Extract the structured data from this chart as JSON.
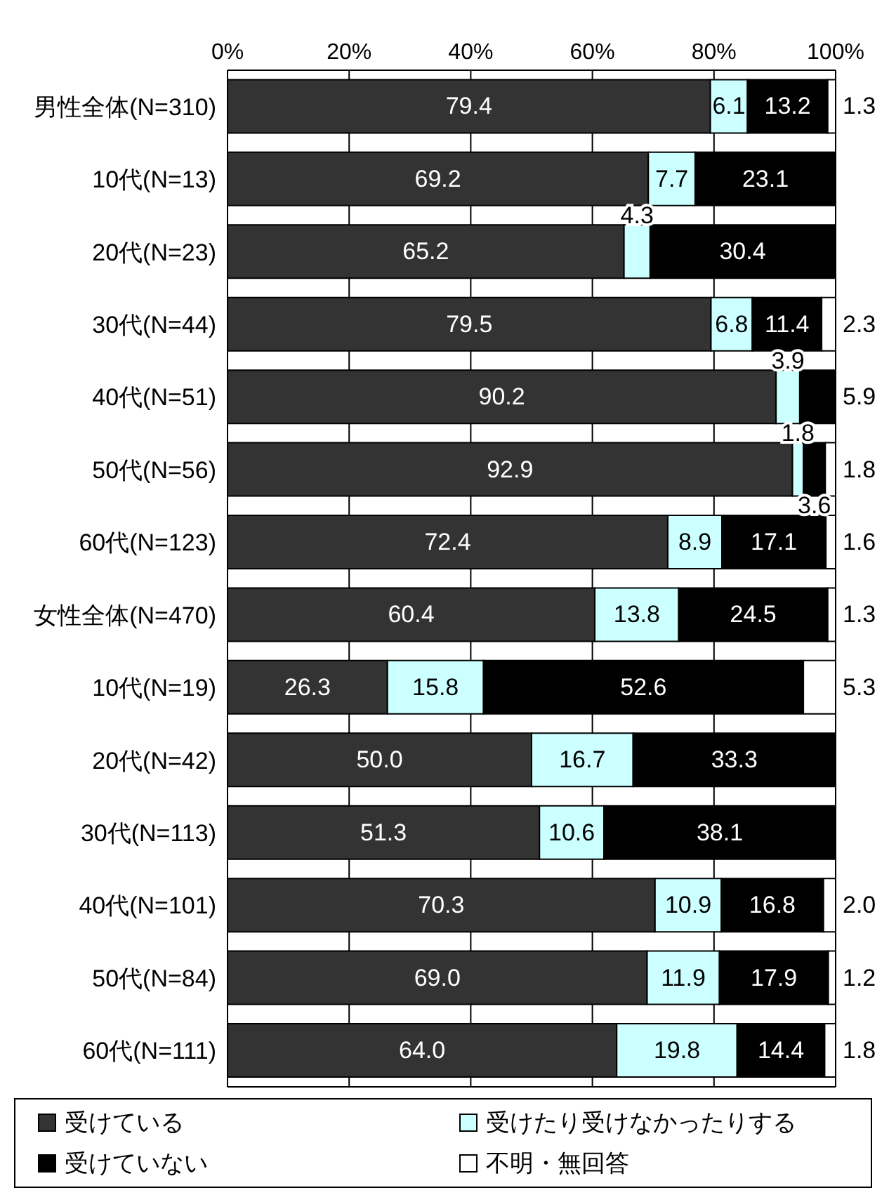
{
  "chart_data": {
    "type": "bar",
    "orientation": "horizontal",
    "stacked": true,
    "categories": [
      "男性全体(N=310)",
      "10代(N=13)",
      "20代(N=23)",
      "30代(N=44)",
      "40代(N=51)",
      "50代(N=56)",
      "60代(N=123)",
      "女性全体(N=470)",
      "10代(N=19)",
      "20代(N=42)",
      "30代(N=113)",
      "40代(N=101)",
      "50代(N=84)",
      "60代(N=111)"
    ],
    "series": [
      {
        "name": "受けている",
        "color": "#333333",
        "values": [
          79.4,
          69.2,
          65.2,
          79.5,
          90.2,
          92.9,
          72.4,
          60.4,
          26.3,
          50.0,
          51.3,
          70.3,
          69.0,
          64.0
        ],
        "value_labels": [
          "79.4",
          "69.2",
          "65.2",
          "79.5",
          "90.2",
          "92.9",
          "72.4",
          "60.4",
          "26.3",
          "50.0",
          "51.3",
          "70.3",
          "69.0",
          "64.0"
        ]
      },
      {
        "name": "受けたり受けなかったりする",
        "color": "#ccffff",
        "values": [
          6.1,
          7.7,
          4.3,
          6.8,
          3.9,
          1.8,
          8.9,
          13.8,
          15.8,
          16.7,
          10.6,
          10.9,
          11.9,
          19.8
        ],
        "value_labels": [
          "6.1",
          "7.7",
          "4.3",
          "6.8",
          "3.9",
          "1.8",
          "8.9",
          "13.8",
          "15.8",
          "16.7",
          "10.6",
          "10.9",
          "11.9",
          "19.8"
        ]
      },
      {
        "name": "受けていない",
        "color": "#000000",
        "values": [
          13.2,
          23.1,
          30.4,
          11.4,
          5.9,
          3.6,
          17.1,
          24.5,
          52.6,
          33.3,
          38.1,
          16.8,
          17.9,
          14.4
        ],
        "value_labels": [
          "13.2",
          "23.1",
          "30.4",
          "11.4",
          "5.9",
          "3.6",
          "17.1",
          "24.5",
          "52.6",
          "33.3",
          "38.1",
          "16.8",
          "17.9",
          "14.4"
        ]
      },
      {
        "name": "不明・無回答",
        "color": "#ffffff",
        "values": [
          1.3,
          0,
          0,
          2.3,
          0,
          1.8,
          1.6,
          1.3,
          5.3,
          0,
          0,
          2.0,
          1.2,
          1.8
        ],
        "value_labels": [
          "1.3",
          null,
          null,
          "2.3",
          null,
          "1.8",
          "1.6",
          "1.3",
          "5.3",
          null,
          null,
          "2.0",
          "1.2",
          "1.8"
        ]
      }
    ],
    "xlim": [
      0,
      100
    ],
    "xticks": [
      {
        "value": 0,
        "label": "0%"
      },
      {
        "value": 20,
        "label": "20%"
      },
      {
        "value": 40,
        "label": "40%"
      },
      {
        "value": 60,
        "label": "60%"
      },
      {
        "value": 80,
        "label": "80%"
      },
      {
        "value": 100,
        "label": "100%"
      }
    ],
    "grid": "x",
    "legend": "bottom"
  }
}
